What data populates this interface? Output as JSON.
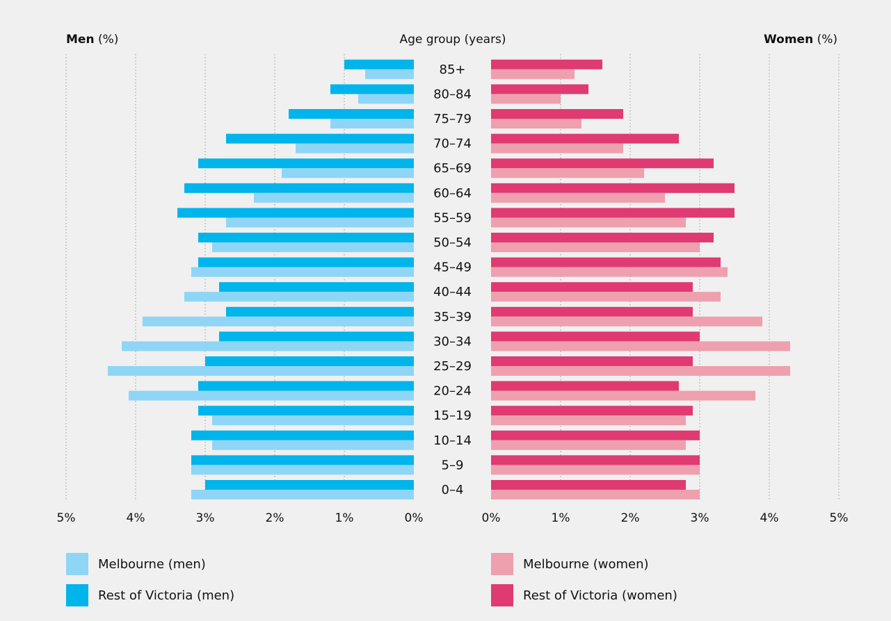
{
  "chart_data": {
    "type": "bar",
    "orientation": "horizontal",
    "layout": "population-pyramid",
    "title": "",
    "center_label": "Age group (years)",
    "left_title": {
      "bold": "Men",
      "unit": " (%)"
    },
    "right_title": {
      "bold": "Women",
      "unit": " (%)"
    },
    "categories": [
      "0–4",
      "5–9",
      "10–14",
      "15–19",
      "20–24",
      "25–29",
      "30–34",
      "35–39",
      "40–44",
      "45–49",
      "50–54",
      "55–59",
      "60–64",
      "65–69",
      "70–74",
      "75–79",
      "80–84",
      "85+"
    ],
    "xlim": [
      0,
      5
    ],
    "x_ticks": [
      "0%",
      "1%",
      "2%",
      "3%",
      "4%",
      "5%"
    ],
    "grid": true,
    "legend_position": "bottom",
    "series": [
      {
        "name": "Melbourne (men)",
        "side": "left",
        "color": "#8fd6f6",
        "values": [
          3.2,
          3.2,
          2.9,
          2.9,
          4.1,
          4.4,
          4.2,
          3.9,
          3.3,
          3.2,
          2.9,
          2.7,
          2.3,
          1.9,
          1.7,
          1.2,
          0.8,
          0.7
        ]
      },
      {
        "name": "Rest of Victoria (men)",
        "side": "left",
        "color": "#00b4ec",
        "values": [
          3.0,
          3.2,
          3.2,
          3.1,
          3.1,
          3.0,
          2.8,
          2.7,
          2.8,
          3.1,
          3.1,
          3.4,
          3.3,
          3.1,
          2.7,
          1.8,
          1.2,
          1.0
        ]
      },
      {
        "name": "Melbourne (women)",
        "side": "right",
        "color": "#eea0ae",
        "values": [
          3.0,
          3.0,
          2.8,
          2.8,
          3.8,
          4.3,
          4.3,
          3.9,
          3.3,
          3.4,
          3.0,
          2.8,
          2.5,
          2.2,
          1.9,
          1.3,
          1.0,
          1.2
        ]
      },
      {
        "name": "Rest of Victoria (women)",
        "side": "right",
        "color": "#e03a72",
        "values": [
          2.8,
          3.0,
          3.0,
          2.9,
          2.7,
          2.9,
          3.0,
          2.9,
          2.9,
          3.3,
          3.2,
          3.5,
          3.5,
          3.2,
          2.7,
          1.9,
          1.4,
          1.6
        ]
      }
    ]
  }
}
